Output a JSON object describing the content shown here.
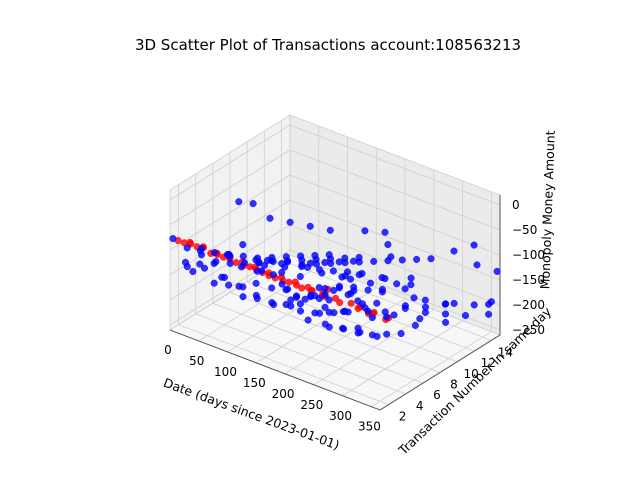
{
  "chart_data": {
    "type": "scatter",
    "title": "3D Scatter Plot of Transactions account:108563213",
    "xlabel": "Date (days since 2023-01-01)",
    "ylabel": "Transaction Number in same day",
    "zlabel": "Monopoly Money Amount",
    "x_ticks": [
      "0",
      "50",
      "100",
      "150",
      "200",
      "250",
      "300",
      "350"
    ],
    "y_ticks": [
      "2",
      "4",
      "6",
      "8",
      "10",
      "12",
      "14"
    ],
    "z_ticks": [
      "0",
      "−50",
      "−100",
      "−150",
      "−200",
      "−250"
    ],
    "xlim": [
      0,
      365
    ],
    "ylim": [
      1,
      15
    ],
    "zlim": [
      -260,
      20
    ],
    "grid": true,
    "series": [
      {
        "color": "#ff0000",
        "points": [
          [
            14,
            1,
            -75
          ],
          [
            36,
            1,
            -72
          ],
          [
            58,
            1,
            -70
          ],
          [
            82,
            1,
            -73
          ],
          [
            104,
            1,
            -72
          ],
          [
            128,
            1,
            -75
          ],
          [
            150,
            1,
            -73
          ],
          [
            172,
            1,
            -76
          ],
          [
            196,
            1,
            -75
          ],
          [
            220,
            1,
            -74
          ],
          [
            10,
            2,
            -92
          ],
          [
            32,
            2,
            -90
          ],
          [
            56,
            2,
            -93
          ],
          [
            78,
            2,
            -91
          ],
          [
            100,
            2,
            -92
          ],
          [
            124,
            2,
            -90
          ],
          [
            146,
            2,
            -92
          ],
          [
            168,
            2,
            -93
          ],
          [
            192,
            2,
            -91
          ],
          [
            214,
            2,
            -93
          ],
          [
            5,
            3,
            -104
          ],
          [
            28,
            3,
            -103
          ],
          [
            52,
            3,
            -105
          ],
          [
            74,
            3,
            -104
          ],
          [
            96,
            3,
            -103
          ],
          [
            118,
            3,
            -104
          ],
          [
            142,
            3,
            -105
          ],
          [
            164,
            3,
            -104
          ],
          [
            188,
            3,
            -103
          ],
          [
            210,
            3,
            -104
          ],
          [
            232,
            2,
            -90
          ],
          [
            236,
            3,
            -104
          ],
          [
            255,
            2,
            -92
          ],
          [
            258,
            3,
            -105
          ],
          [
            245,
            1,
            -74
          ],
          [
            265,
            1,
            -75
          ],
          [
            280,
            2,
            -93
          ],
          [
            285,
            3,
            -103
          ],
          [
            300,
            3,
            -104
          ],
          [
            312,
            2,
            -91
          ],
          [
            325,
            3,
            -104
          ],
          [
            338,
            2,
            -90
          ],
          [
            350,
            3,
            -104
          ],
          [
            360,
            2,
            -92
          ],
          [
            345,
            1,
            -76
          ],
          [
            230,
            4,
            -110
          ]
        ]
      },
      {
        "color": "#0000ff",
        "points": [
          [
            5,
            1,
            -75
          ],
          [
            15,
            2,
            -100
          ],
          [
            25,
            3,
            -120
          ],
          [
            35,
            4,
            -140
          ],
          [
            45,
            5,
            -150
          ],
          [
            55,
            6,
            -155
          ],
          [
            65,
            7,
            -160
          ],
          [
            75,
            8,
            -165
          ],
          [
            85,
            9,
            -170
          ],
          [
            95,
            10,
            -175
          ],
          [
            105,
            11,
            -180
          ],
          [
            115,
            12,
            -185
          ],
          [
            125,
            13,
            -190
          ],
          [
            135,
            14,
            -195
          ],
          [
            8,
            4,
            -130
          ],
          [
            18,
            5,
            -140
          ],
          [
            28,
            6,
            -150
          ],
          [
            38,
            7,
            -160
          ],
          [
            48,
            8,
            -170
          ],
          [
            58,
            9,
            -175
          ],
          [
            68,
            10,
            -180
          ],
          [
            78,
            11,
            -185
          ],
          [
            88,
            12,
            -190
          ],
          [
            98,
            13,
            -195
          ],
          [
            12,
            2,
            -130
          ],
          [
            22,
            3,
            -140
          ],
          [
            32,
            4,
            -145
          ],
          [
            42,
            5,
            -135
          ],
          [
            52,
            6,
            -120
          ],
          [
            62,
            2,
            -150
          ],
          [
            72,
            3,
            -160
          ],
          [
            82,
            4,
            -170
          ],
          [
            92,
            5,
            -145
          ],
          [
            102,
            6,
            -130
          ],
          [
            112,
            2,
            -155
          ],
          [
            122,
            3,
            -165
          ],
          [
            132,
            4,
            -150
          ],
          [
            142,
            5,
            -160
          ],
          [
            152,
            6,
            -140
          ],
          [
            162,
            2,
            -145
          ],
          [
            172,
            3,
            -155
          ],
          [
            182,
            4,
            -160
          ],
          [
            192,
            5,
            -150
          ],
          [
            202,
            6,
            -165
          ],
          [
            212,
            2,
            -140
          ],
          [
            222,
            3,
            -150
          ],
          [
            232,
            4,
            -155
          ],
          [
            242,
            5,
            -160
          ],
          [
            252,
            6,
            -145
          ],
          [
            262,
            2,
            -150
          ],
          [
            272,
            3,
            -160
          ],
          [
            282,
            4,
            -165
          ],
          [
            292,
            5,
            -150
          ],
          [
            302,
            6,
            -155
          ],
          [
            312,
            2,
            -140
          ],
          [
            322,
            3,
            -150
          ],
          [
            332,
            4,
            -155
          ],
          [
            342,
            5,
            -160
          ],
          [
            352,
            6,
            -150
          ],
          [
            20,
            8,
            -200
          ],
          [
            40,
            9,
            -210
          ],
          [
            60,
            10,
            -215
          ],
          [
            80,
            11,
            -205
          ],
          [
            100,
            12,
            -220
          ],
          [
            120,
            13,
            -230
          ],
          [
            140,
            14,
            -225
          ],
          [
            160,
            15,
            -235
          ],
          [
            180,
            7,
            -200
          ],
          [
            200,
            8,
            -210
          ],
          [
            220,
            9,
            -205
          ],
          [
            240,
            10,
            -215
          ],
          [
            260,
            11,
            -210
          ],
          [
            280,
            12,
            -220
          ],
          [
            300,
            13,
            -225
          ],
          [
            320,
            14,
            -230
          ],
          [
            30,
            1,
            -120
          ],
          [
            60,
            1,
            -110
          ],
          [
            90,
            1,
            -115
          ],
          [
            120,
            1,
            -120
          ],
          [
            150,
            1,
            -125
          ],
          [
            180,
            1,
            -130
          ],
          [
            210,
            1,
            -120
          ],
          [
            240,
            1,
            -135
          ],
          [
            270,
            1,
            -130
          ],
          [
            300,
            1,
            -125
          ],
          [
            330,
            1,
            -120
          ],
          [
            360,
            1,
            -115
          ],
          [
            15,
            7,
            -170
          ],
          [
            45,
            8,
            -175
          ],
          [
            75,
            9,
            -180
          ],
          [
            105,
            10,
            -185
          ],
          [
            135,
            11,
            -190
          ],
          [
            165,
            12,
            -195
          ],
          [
            195,
            13,
            -200
          ],
          [
            225,
            14,
            -210
          ],
          [
            255,
            7,
            -175
          ],
          [
            285,
            8,
            -180
          ],
          [
            315,
            9,
            -185
          ],
          [
            345,
            10,
            -190
          ],
          [
            10,
            3,
            -160
          ],
          [
            50,
            4,
            -165
          ],
          [
            90,
            5,
            -170
          ],
          [
            130,
            6,
            -175
          ],
          [
            170,
            7,
            -165
          ],
          [
            210,
            8,
            -170
          ],
          [
            250,
            9,
            -160
          ],
          [
            290,
            10,
            -165
          ],
          [
            330,
            11,
            -170
          ],
          [
            190,
            3,
            -130
          ],
          [
            200,
            4,
            -135
          ],
          [
            210,
            5,
            -140
          ],
          [
            220,
            6,
            -130
          ],
          [
            230,
            7,
            -145
          ],
          [
            195,
            2,
            -125
          ],
          [
            205,
            3,
            -130
          ],
          [
            215,
            4,
            -135
          ],
          [
            225,
            5,
            -125
          ],
          [
            235,
            6,
            -140
          ],
          [
            245,
            2,
            -130
          ],
          [
            255,
            3,
            -135
          ],
          [
            265,
            4,
            -140
          ],
          [
            275,
            5,
            -130
          ],
          [
            285,
            6,
            -135
          ],
          [
            175,
            4,
            -150
          ],
          [
            185,
            5,
            -155
          ],
          [
            195,
            6,
            -145
          ],
          [
            205,
            7,
            -150
          ],
          [
            215,
            8,
            -155
          ],
          [
            240,
            8,
            -150
          ],
          [
            250,
            9,
            -155
          ],
          [
            260,
            10,
            -150
          ],
          [
            270,
            11,
            -145
          ],
          [
            290,
            9,
            -170
          ],
          [
            310,
            10,
            -175
          ],
          [
            330,
            12,
            -180
          ],
          [
            350,
            13,
            -185
          ],
          [
            360,
            14,
            -190
          ],
          [
            140,
            8,
            -140
          ],
          [
            150,
            9,
            -145
          ],
          [
            160,
            10,
            -150
          ],
          [
            170,
            11,
            -155
          ],
          [
            110,
            7,
            -150
          ],
          [
            100,
            8,
            -155
          ],
          [
            90,
            6,
            -145
          ],
          [
            80,
            7,
            -150
          ],
          [
            40,
            2,
            -90
          ],
          [
            70,
            3,
            -100
          ],
          [
            110,
            4,
            -110
          ],
          [
            150,
            3,
            -105
          ],
          [
            180,
            2,
            -100
          ],
          [
            300,
            14,
            -110
          ],
          [
            320,
            15,
            -100
          ],
          [
            340,
            14,
            -120
          ],
          [
            360,
            15,
            -135
          ],
          [
            100,
            15,
            -250
          ],
          [
            120,
            14,
            -245
          ],
          [
            140,
            15,
            -255
          ],
          [
            200,
            15,
            -240
          ],
          [
            250,
            14,
            -230
          ],
          [
            270,
            15,
            -240
          ],
          [
            350,
            15,
            -200
          ],
          [
            360,
            14,
            -210
          ],
          [
            10,
            12,
            -150
          ],
          [
            30,
            13,
            -160
          ],
          [
            50,
            14,
            -170
          ],
          [
            70,
            15,
            -180
          ],
          [
            160,
            13,
            -120
          ],
          [
            180,
            14,
            -125
          ],
          [
            200,
            13,
            -130
          ],
          [
            220,
            12,
            -135
          ],
          [
            60,
            5,
            -20
          ],
          [
            70,
            6,
            -30
          ],
          [
            230,
            3,
            -60
          ],
          [
            260,
            4,
            -70
          ],
          [
            155,
            6,
            -115
          ],
          [
            165,
            7,
            -120
          ],
          [
            175,
            8,
            -125
          ],
          [
            185,
            9,
            -130
          ],
          [
            195,
            10,
            -135
          ],
          [
            205,
            11,
            -140
          ],
          [
            215,
            12,
            -145
          ],
          [
            225,
            13,
            -150
          ],
          [
            235,
            14,
            -155
          ],
          [
            245,
            15,
            -160
          ]
        ]
      }
    ]
  }
}
